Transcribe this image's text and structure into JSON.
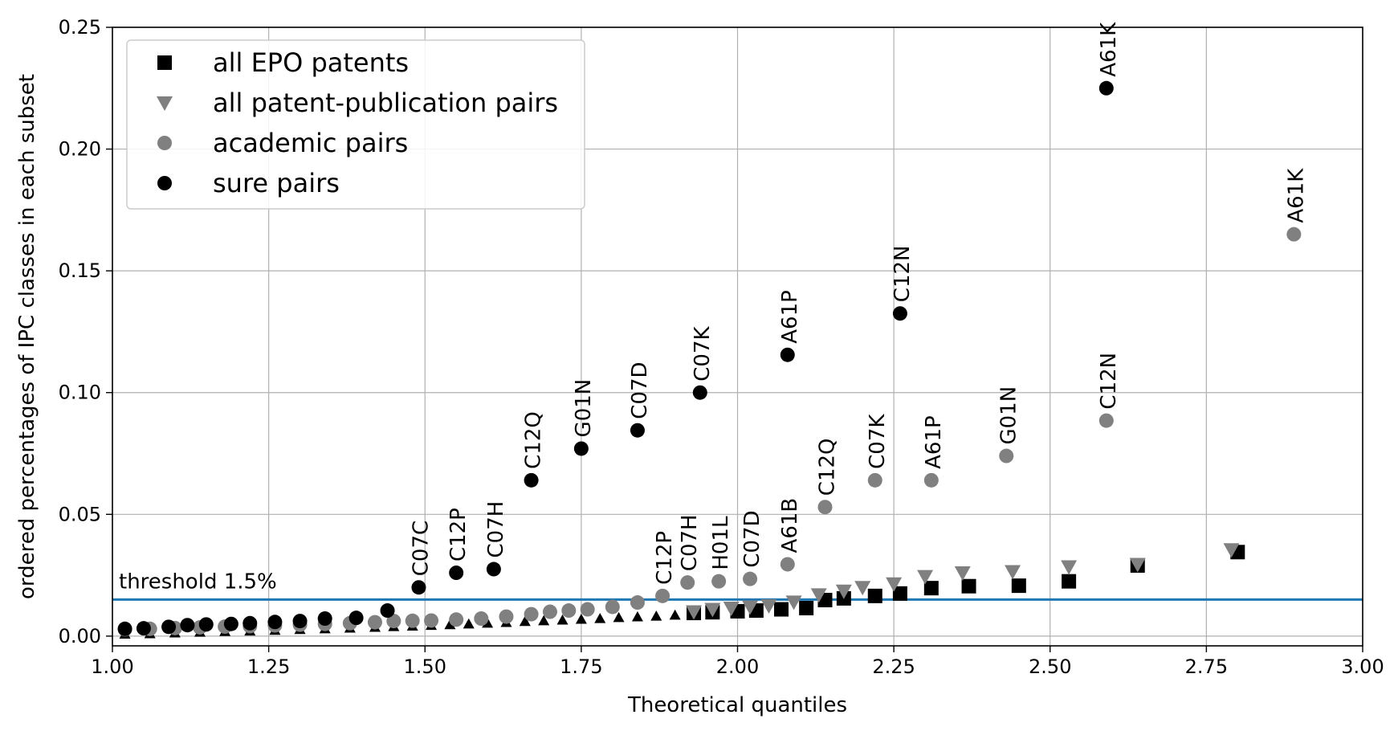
{
  "chart_data": {
    "type": "scatter",
    "title": "",
    "xlabel": "Theoretical quantiles",
    "ylabel": "ordered percentages of IPC classes in each subset",
    "xlim": [
      1.0,
      3.0
    ],
    "ylim": [
      -0.004,
      0.25
    ],
    "xticks": [
      "1.00",
      "1.25",
      "1.50",
      "1.75",
      "2.00",
      "2.25",
      "2.50",
      "2.75",
      "3.00"
    ],
    "yticks": [
      "0.00",
      "0.05",
      "0.10",
      "0.15",
      "0.20",
      "0.25"
    ],
    "grid": true,
    "legend_position": "top-left",
    "threshold": {
      "y": 0.015,
      "label": "threshold 1.5%",
      "color": "#1f77b4"
    },
    "series": [
      {
        "name": "all EPO patents",
        "marker": "square",
        "color": "#000000",
        "points": [
          [
            1.93,
            0.0095
          ],
          [
            1.96,
            0.0098
          ],
          [
            2.0,
            0.0102
          ],
          [
            2.03,
            0.0105
          ],
          [
            2.07,
            0.011
          ],
          [
            2.11,
            0.0115
          ],
          [
            2.14,
            0.0148
          ],
          [
            2.17,
            0.0155
          ],
          [
            2.22,
            0.0165
          ],
          [
            2.26,
            0.0175
          ],
          [
            2.31,
            0.0197
          ],
          [
            2.37,
            0.0205
          ],
          [
            2.45,
            0.0207
          ],
          [
            2.53,
            0.0225
          ],
          [
            2.64,
            0.029
          ],
          [
            2.8,
            0.0345
          ]
        ]
      },
      {
        "name": "all patent-publication pairs",
        "marker": "triangle-down",
        "color": "#808080",
        "points": [
          [
            1.93,
            0.01
          ],
          [
            1.96,
            0.011
          ],
          [
            1.99,
            0.0115
          ],
          [
            2.02,
            0.012
          ],
          [
            2.05,
            0.0125
          ],
          [
            2.09,
            0.014
          ],
          [
            2.13,
            0.017
          ],
          [
            2.17,
            0.0185
          ],
          [
            2.2,
            0.02
          ],
          [
            2.25,
            0.0215
          ],
          [
            2.3,
            0.0245
          ],
          [
            2.36,
            0.026
          ],
          [
            2.44,
            0.0265
          ],
          [
            2.53,
            0.0285
          ],
          [
            2.64,
            0.0295
          ],
          [
            2.79,
            0.0355
          ]
        ]
      },
      {
        "name": "academic pairs",
        "marker": "circle",
        "color": "#808080",
        "points": [
          [
            1.45,
            0.0062
          ],
          [
            1.48,
            0.0063
          ],
          [
            1.51,
            0.0064
          ],
          [
            1.55,
            0.0068
          ],
          [
            1.59,
            0.0072
          ],
          [
            1.63,
            0.008
          ],
          [
            1.67,
            0.009
          ],
          [
            1.7,
            0.01
          ],
          [
            1.73,
            0.0105
          ],
          [
            1.76,
            0.011
          ],
          [
            1.8,
            0.012
          ],
          [
            1.84,
            0.0138
          ],
          [
            1.88,
            0.0165
          ],
          [
            1.92,
            0.022
          ],
          [
            1.97,
            0.0225
          ],
          [
            2.02,
            0.0235
          ],
          [
            2.08,
            0.0295
          ],
          [
            2.14,
            0.053
          ],
          [
            2.22,
            0.064
          ],
          [
            2.31,
            0.064
          ],
          [
            2.43,
            0.074
          ],
          [
            2.59,
            0.0885
          ],
          [
            2.89,
            0.165
          ]
        ]
      },
      {
        "name": "sure pairs",
        "marker": "circle",
        "color": "#000000",
        "points": [
          [
            1.02,
            0.003
          ],
          [
            1.05,
            0.0032
          ],
          [
            1.09,
            0.0038
          ],
          [
            1.12,
            0.0045
          ],
          [
            1.15,
            0.0048
          ],
          [
            1.19,
            0.005
          ],
          [
            1.22,
            0.0053
          ],
          [
            1.26,
            0.0058
          ],
          [
            1.3,
            0.0062
          ],
          [
            1.34,
            0.0072
          ],
          [
            1.39,
            0.0075
          ],
          [
            1.44,
            0.0105
          ],
          [
            1.49,
            0.02
          ],
          [
            1.55,
            0.026
          ],
          [
            1.61,
            0.0275
          ],
          [
            1.67,
            0.064
          ],
          [
            1.75,
            0.077
          ],
          [
            1.84,
            0.0845
          ],
          [
            1.94,
            0.1
          ],
          [
            2.08,
            0.1155
          ],
          [
            2.26,
            0.1325
          ],
          [
            2.59,
            0.225
          ]
        ]
      }
    ],
    "background_series": {
      "circles_gray": [
        [
          1.02,
          0.0028
        ],
        [
          1.06,
          0.003
        ],
        [
          1.1,
          0.0033
        ],
        [
          1.14,
          0.0036
        ],
        [
          1.18,
          0.0039
        ],
        [
          1.22,
          0.0041
        ],
        [
          1.26,
          0.0044
        ],
        [
          1.3,
          0.0047
        ],
        [
          1.34,
          0.005
        ],
        [
          1.38,
          0.0053
        ],
        [
          1.42,
          0.0057
        ]
      ],
      "triangles_black": [
        [
          1.02,
          0.0008
        ],
        [
          1.06,
          0.001
        ],
        [
          1.1,
          0.0013
        ],
        [
          1.14,
          0.0016
        ],
        [
          1.18,
          0.0019
        ],
        [
          1.22,
          0.0021
        ],
        [
          1.26,
          0.0024
        ],
        [
          1.3,
          0.0027
        ],
        [
          1.34,
          0.003
        ],
        [
          1.38,
          0.0033
        ],
        [
          1.42,
          0.0036
        ],
        [
          1.45,
          0.0039
        ],
        [
          1.48,
          0.0041
        ],
        [
          1.51,
          0.0044
        ],
        [
          1.54,
          0.0047
        ],
        [
          1.57,
          0.005
        ],
        [
          1.6,
          0.0053
        ],
        [
          1.63,
          0.0056
        ],
        [
          1.66,
          0.006
        ],
        [
          1.69,
          0.0063
        ],
        [
          1.72,
          0.0066
        ],
        [
          1.75,
          0.0069
        ],
        [
          1.78,
          0.0072
        ],
        [
          1.81,
          0.0076
        ],
        [
          1.84,
          0.0079
        ],
        [
          1.87,
          0.0082
        ],
        [
          1.9,
          0.0086
        ]
      ]
    },
    "annotations": [
      {
        "text": "C07C",
        "x": 1.49,
        "y": 0.02,
        "color": "#000000"
      },
      {
        "text": "C12P",
        "x": 1.55,
        "y": 0.026,
        "color": "#000000"
      },
      {
        "text": "C07H",
        "x": 1.61,
        "y": 0.0275,
        "color": "#000000"
      },
      {
        "text": "C12Q",
        "x": 1.67,
        "y": 0.064,
        "color": "#000000"
      },
      {
        "text": "G01N",
        "x": 1.75,
        "y": 0.077,
        "color": "#000000"
      },
      {
        "text": "C07D",
        "x": 1.84,
        "y": 0.0845,
        "color": "#000000"
      },
      {
        "text": "C07K",
        "x": 1.94,
        "y": 0.1,
        "color": "#000000"
      },
      {
        "text": "A61P",
        "x": 2.08,
        "y": 0.1155,
        "color": "#000000"
      },
      {
        "text": "C12N",
        "x": 2.26,
        "y": 0.1325,
        "color": "#000000"
      },
      {
        "text": "A61K",
        "x": 2.59,
        "y": 0.225,
        "color": "#000000"
      },
      {
        "text": "C12P",
        "x": 1.88,
        "y": 0.0165,
        "color": "#808080"
      },
      {
        "text": "C07H",
        "x": 1.92,
        "y": 0.022,
        "color": "#808080"
      },
      {
        "text": "H01L",
        "x": 1.97,
        "y": 0.0225,
        "color": "#808080"
      },
      {
        "text": "C07D",
        "x": 2.02,
        "y": 0.0235,
        "color": "#808080"
      },
      {
        "text": "A61B",
        "x": 2.08,
        "y": 0.0295,
        "color": "#808080"
      },
      {
        "text": "C12Q",
        "x": 2.14,
        "y": 0.053,
        "color": "#808080"
      },
      {
        "text": "C07K",
        "x": 2.22,
        "y": 0.064,
        "color": "#808080"
      },
      {
        "text": "A61P",
        "x": 2.31,
        "y": 0.064,
        "color": "#808080"
      },
      {
        "text": "G01N",
        "x": 2.43,
        "y": 0.074,
        "color": "#808080"
      },
      {
        "text": "C12N",
        "x": 2.59,
        "y": 0.0885,
        "color": "#808080"
      },
      {
        "text": "A61K",
        "x": 2.89,
        "y": 0.165,
        "color": "#808080"
      }
    ]
  }
}
